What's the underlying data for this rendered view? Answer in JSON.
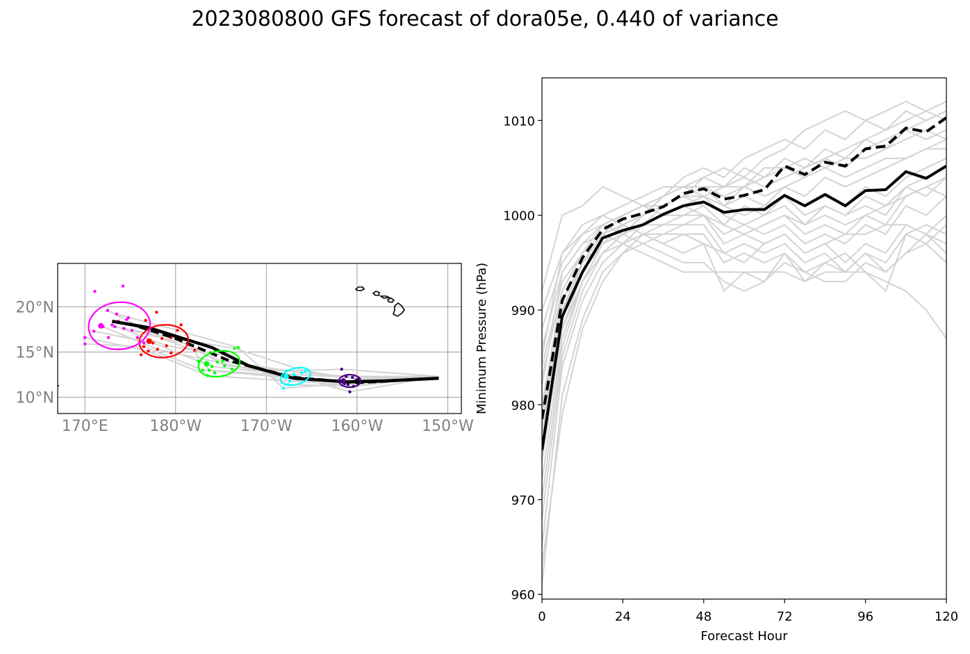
{
  "title": "2023080800 GFS forecast of dora05e, 0.440 of variance",
  "colors": {
    "ensemble": "#d3d3d3",
    "mean": "#000000",
    "grid": "#9e9e9e",
    "map_tick": "#808080",
    "hour_0": "#4b0082",
    "hour_24": "#00ffff",
    "hour_48": "#00ff00",
    "hour_72": "#ff0000",
    "hour_96": "#ff00ff"
  },
  "chart_data": [
    {
      "type": "scatter",
      "panel": "track map",
      "lon_ticks": [
        170,
        180,
        190,
        200,
        210
      ],
      "lon_tick_labels": [
        "170°E",
        "180°W",
        "170°W",
        "160°W",
        "150°W"
      ],
      "lat_ticks": [
        10,
        15,
        20
      ],
      "lat_tick_labels": [
        "10°N",
        "15°N",
        "20°N"
      ],
      "xlim": [
        167,
        211.5
      ],
      "ylim": [
        8.2,
        24.8
      ],
      "grid": true,
      "mean_track_solid": [
        [
          209,
          12.1
        ],
        [
          203,
          11.8
        ],
        [
          199,
          11.7
        ],
        [
          193,
          12.1
        ],
        [
          188,
          13.5
        ],
        [
          184,
          15.5
        ],
        [
          177,
          17.7
        ],
        [
          173,
          18.4
        ]
      ],
      "mean_track_dashed": [
        [
          209,
          12.1
        ],
        [
          200,
          11.6
        ],
        [
          193,
          12.2
        ],
        [
          186,
          14.0
        ],
        [
          180,
          16.5
        ],
        [
          175,
          18.1
        ]
      ],
      "ensemble_track_endpoints": [
        [
          209,
          12.3
        ],
        [
          175,
          18.3
        ]
      ],
      "ellipses": [
        {
          "hour": 0,
          "center": [
            199.2,
            11.8
          ],
          "rx": 1.2,
          "ry": 0.7,
          "angle": 0
        },
        {
          "hour": 24,
          "center": [
            193.2,
            12.3
          ],
          "rx": 1.7,
          "ry": 0.9,
          "angle": -15
        },
        {
          "hour": 48,
          "center": [
            184.8,
            13.7
          ],
          "rx": 2.3,
          "ry": 1.4,
          "angle": -10
        },
        {
          "hour": 72,
          "center": [
            178.7,
            16.2
          ],
          "rx": 2.7,
          "ry": 1.8,
          "angle": -5
        },
        {
          "hour": 96,
          "center": [
            173.8,
            17.9
          ],
          "rx": 3.4,
          "ry": 2.6,
          "angle": -5
        }
      ],
      "member_points": [
        {
          "hour": 0,
          "points": [
            [
              198.5,
              11.8
            ],
            [
              199.0,
              11.4
            ],
            [
              199.5,
              12.2
            ],
            [
              200.0,
              11.6
            ],
            [
              198.8,
              12.3
            ],
            [
              199.6,
              11.2
            ],
            [
              200.1,
              12.0
            ],
            [
              198.6,
              11.5
            ],
            [
              199.2,
              10.6
            ],
            [
              198.3,
              13.1
            ],
            [
              199.9,
              11.9
            ]
          ]
        },
        {
          "hour": 24,
          "points": [
            [
              192.0,
              12.2
            ],
            [
              192.6,
              11.8
            ],
            [
              193.0,
              12.5
            ],
            [
              193.5,
              12.0
            ],
            [
              193.9,
              12.7
            ],
            [
              192.4,
              11.4
            ],
            [
              194.3,
              12.9
            ],
            [
              191.9,
              11.0
            ],
            [
              193.2,
              12.3
            ],
            [
              192.2,
              12.9
            ]
          ]
        },
        {
          "hour": 48,
          "points": [
            [
              183.0,
              13.0
            ],
            [
              183.5,
              12.4
            ],
            [
              184.0,
              13.4
            ],
            [
              184.6,
              13.9
            ],
            [
              185.2,
              14.0
            ],
            [
              185.8,
              14.6
            ],
            [
              186.5,
              15.4
            ],
            [
              186.9,
              15.5
            ],
            [
              183.7,
              13.0
            ],
            [
              185.4,
              13.5
            ],
            [
              186.2,
              13.1
            ],
            [
              182.5,
              14.0
            ],
            [
              184.3,
              12.7
            ]
          ]
        },
        {
          "hour": 72,
          "points": [
            [
              176.5,
              15.6
            ],
            [
              177.0,
              15.1
            ],
            [
              177.5,
              16.0
            ],
            [
              178.0,
              15.3
            ],
            [
              178.5,
              16.5
            ],
            [
              179.0,
              15.7
            ],
            [
              179.5,
              16.6
            ],
            [
              180.2,
              17.4
            ],
            [
              181.0,
              16.4
            ],
            [
              181.5,
              15.8
            ],
            [
              176.7,
              18.5
            ],
            [
              178.7,
              17.2
            ],
            [
              176.2,
              14.7
            ],
            [
              179.5,
              14.9
            ],
            [
              182.1,
              15.2
            ],
            [
              177.9,
              19.4
            ],
            [
              180.6,
              18.0
            ]
          ]
        },
        {
          "hour": 96,
          "points": [
            [
              170.0,
              15.9
            ],
            [
              170.0,
              16.6
            ],
            [
              171.0,
              17.3
            ],
            [
              172.0,
              17.8
            ],
            [
              172.5,
              19.6
            ],
            [
              173.0,
              18.0
            ],
            [
              173.3,
              17.8
            ],
            [
              173.5,
              19.2
            ],
            [
              174.0,
              18.2
            ],
            [
              174.3,
              17.6
            ],
            [
              174.8,
              18.8
            ],
            [
              175.2,
              17.4
            ],
            [
              175.8,
              16.6
            ],
            [
              176.5,
              16.0
            ],
            [
              174.2,
              22.3
            ],
            [
              171.1,
              21.7
            ],
            [
              172.6,
              16.6
            ],
            [
              173.7,
              18.4
            ],
            [
              174.6,
              18.6
            ]
          ]
        }
      ]
    },
    {
      "type": "line",
      "panel": "minimum pressure",
      "xlabel": "Forecast Hour",
      "ylabel": "Minimum Pressure (hPa)",
      "x_ticks": [
        0,
        24,
        48,
        72,
        96,
        120
      ],
      "y_ticks": [
        960,
        970,
        980,
        990,
        1000,
        1010
      ],
      "xlim": [
        0,
        120
      ],
      "ylim": [
        959.5,
        1014.5
      ],
      "x": [
        0,
        6,
        12,
        18,
        24,
        30,
        36,
        42,
        48,
        54,
        60,
        66,
        72,
        78,
        84,
        90,
        96,
        102,
        108,
        114,
        120
      ],
      "series": [
        {
          "style": "solid",
          "values": [
            975.2,
            989.3,
            994.0,
            997.6,
            998.4,
            999.0,
            1000.1,
            1001.0,
            1001.4,
            1000.3,
            1000.6,
            1000.6,
            1002.1,
            1001.0,
            1002.2,
            1001.0,
            1002.6,
            1002.7,
            1004.6,
            1003.9,
            1005.2
          ]
        },
        {
          "style": "dashed",
          "values": [
            978.5,
            991.0,
            995.5,
            998.5,
            999.6,
            1000.2,
            1000.9,
            1002.3,
            1002.8,
            1001.7,
            1002.1,
            1002.7,
            1005.2,
            1004.3,
            1005.6,
            1005.2,
            1007.0,
            1007.3,
            1009.2,
            1008.8,
            1010.3
          ]
        }
      ],
      "members": [
        [
          985,
          996,
          998,
          1000,
          1001,
          1002,
          1003,
          1003,
          1004,
          1005,
          1004,
          1006,
          1007,
          1009,
          1010,
          1011,
          1010,
          1011,
          1012,
          1011,
          1012
        ],
        [
          982,
          994,
          997,
          999,
          1000,
          1001,
          1002,
          1003,
          1003,
          1002,
          1003,
          1004,
          1005,
          1004,
          1006,
          1005,
          1007,
          1008,
          1009,
          1010,
          1011
        ],
        [
          980,
          992,
          996,
          999,
          1000,
          1001,
          1001,
          1002,
          1003,
          1003,
          1004,
          1003,
          1004,
          1005,
          1006,
          1007,
          1008,
          1009,
          1010,
          1011,
          1010
        ],
        [
          978,
          990,
          995,
          998,
          1000,
          1001,
          1002,
          1003,
          1002,
          1003,
          1003,
          1005,
          1005,
          1006,
          1005,
          1006,
          1006,
          1007,
          1008,
          1009,
          1008
        ],
        [
          976,
          989,
          995,
          998,
          999,
          1000,
          1002,
          1003,
          1003,
          1001,
          1002,
          1001,
          1003,
          1004,
          1005,
          1004,
          1005,
          1006,
          1006,
          1007,
          1007
        ],
        [
          975,
          988,
          994,
          997,
          999,
          1000,
          1001,
          1002,
          1002,
          1001,
          1000,
          1001,
          1002,
          1001,
          1002,
          1001,
          1003,
          1002,
          1004,
          1005,
          1006
        ],
        [
          972,
          987,
          993,
          997,
          998,
          999,
          1000,
          1001,
          1002,
          1000,
          999,
          1000,
          1001,
          999,
          1001,
          1000,
          1002,
          1001,
          1003,
          1002,
          1004
        ],
        [
          970,
          986,
          993,
          996,
          998,
          999,
          1000,
          1000,
          1001,
          999,
          998,
          999,
          1000,
          998,
          999,
          998,
          1000,
          999,
          1002,
          1003,
          1004
        ],
        [
          968,
          985,
          992,
          996,
          997,
          999,
          999,
          1000,
          1000,
          998,
          999,
          998,
          999,
          997,
          998,
          997,
          999,
          998,
          1001,
          1000,
          1002
        ],
        [
          965,
          984,
          991,
          995,
          997,
          998,
          999,
          999,
          1000,
          997,
          998,
          997,
          998,
          996,
          997,
          995,
          997,
          996,
          999,
          998,
          1000
        ],
        [
          963,
          979,
          988,
          993,
          996,
          998,
          998,
          999,
          999,
          996,
          997,
          996,
          997,
          995,
          996,
          994,
          996,
          995,
          998,
          997,
          999
        ],
        [
          961,
          981,
          989,
          994,
          996,
          997,
          998,
          998,
          998,
          995,
          996,
          995,
          996,
          994,
          995,
          996,
          994,
          992,
          998,
          999,
          998
        ],
        [
          984,
          993,
          996,
          998,
          999,
          998,
          997,
          996,
          997,
          992,
          994,
          993,
          996,
          993,
          995,
          994,
          996,
          994,
          996,
          998,
          997
        ],
        [
          986,
          994,
          997,
          998,
          997,
          996,
          995,
          994,
          994,
          994,
          994,
          994,
          994,
          993,
          994,
          994,
          994,
          993,
          992,
          990,
          987
        ],
        [
          988,
          995,
          998,
          999,
          998,
          997,
          996,
          995,
          995,
          993,
          992,
          993,
          995,
          994,
          993,
          993,
          995,
          994,
          996,
          997,
          995
        ],
        [
          990,
          996,
          999,
          1000,
          999,
          998,
          997,
          998,
          997,
          996,
          995,
          997,
          998,
          996,
          997,
          998,
          998,
          999,
          999,
          998,
          996
        ],
        [
          992,
          1000,
          1001,
          1003,
          1002,
          1001,
          1000,
          1001,
          1000,
          999,
          998,
          999,
          1000,
          999,
          1000,
          999,
          1000,
          1001,
          1002,
          1003,
          1002
        ],
        [
          979,
          991,
          995,
          997,
          999,
          1000,
          1001,
          1002,
          1004,
          1003,
          1005,
          1004,
          1006,
          1005,
          1007,
          1006,
          1008,
          1007,
          1009,
          1008,
          1009
        ],
        [
          977,
          990,
          994,
          997,
          998,
          1000,
          1002,
          1004,
          1005,
          1004,
          1006,
          1007,
          1008,
          1007,
          1009,
          1008,
          1010,
          1009,
          1011,
          1010,
          1011
        ],
        [
          974,
          988,
          993,
          996,
          998,
          999,
          1001,
          1002,
          1001,
          999,
          1001,
          1000,
          1002,
          1000,
          1001,
          1000,
          1001,
          1000,
          1003,
          1004,
          1005
        ],
        [
          983,
          992,
          996,
          999,
          1000,
          1001,
          1000,
          1001,
          1002,
          1001,
          1003,
          1002,
          1003,
          1002,
          1004,
          1003,
          1004,
          1005,
          1006,
          1007,
          1008
        ]
      ]
    }
  ]
}
